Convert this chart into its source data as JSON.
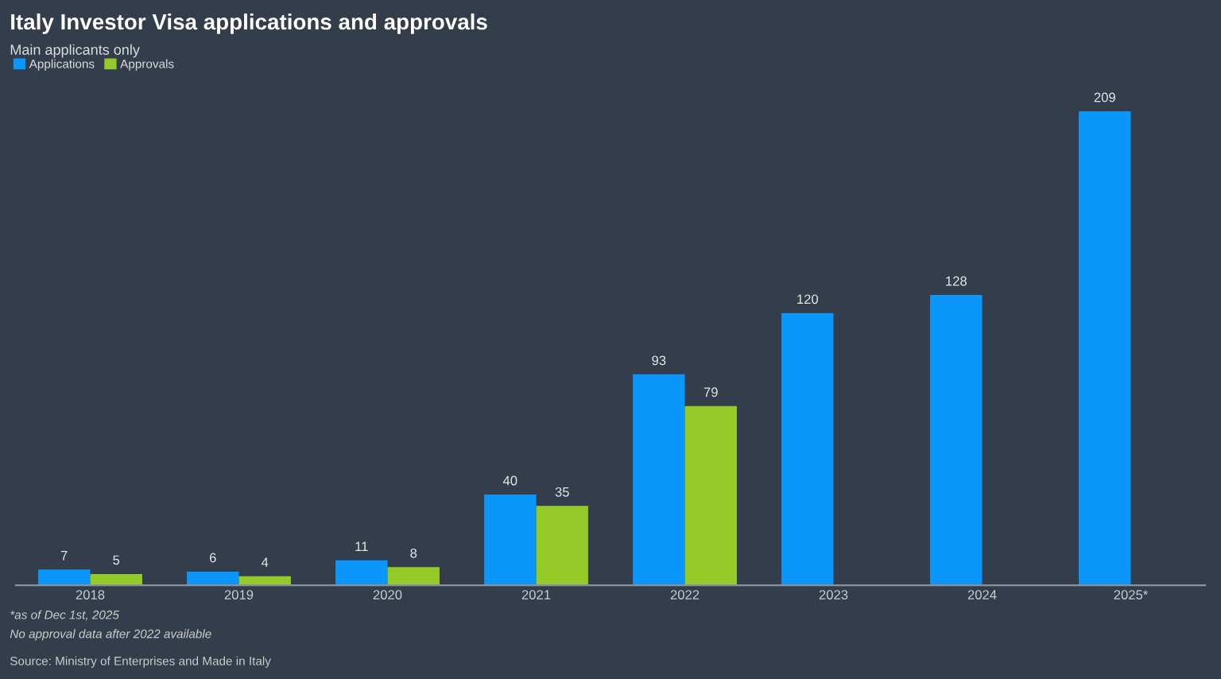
{
  "chart_data": {
    "type": "bar",
    "title": "Italy Investor Visa applications and approvals",
    "subtitle": "Main applicants only",
    "categories": [
      "2018",
      "2019",
      "2020",
      "2021",
      "2022",
      "2023",
      "2024",
      "2025*"
    ],
    "series": [
      {
        "name": "Applications",
        "color": "#0b96fb",
        "values": [
          7,
          6,
          11,
          40,
          93,
          120,
          128,
          209
        ]
      },
      {
        "name": "Approvals",
        "color": "#95cb29",
        "values": [
          5,
          4,
          8,
          35,
          79,
          null,
          null,
          null
        ]
      }
    ],
    "data_labels": true,
    "legend": "top left",
    "grid": false,
    "tick_labels": "x",
    "annotations": [
      "*as of Dec 1st, 2025",
      "No approval data after 2022 available",
      "Source: Ministry of Enterprises and Made in Italy"
    ]
  }
}
